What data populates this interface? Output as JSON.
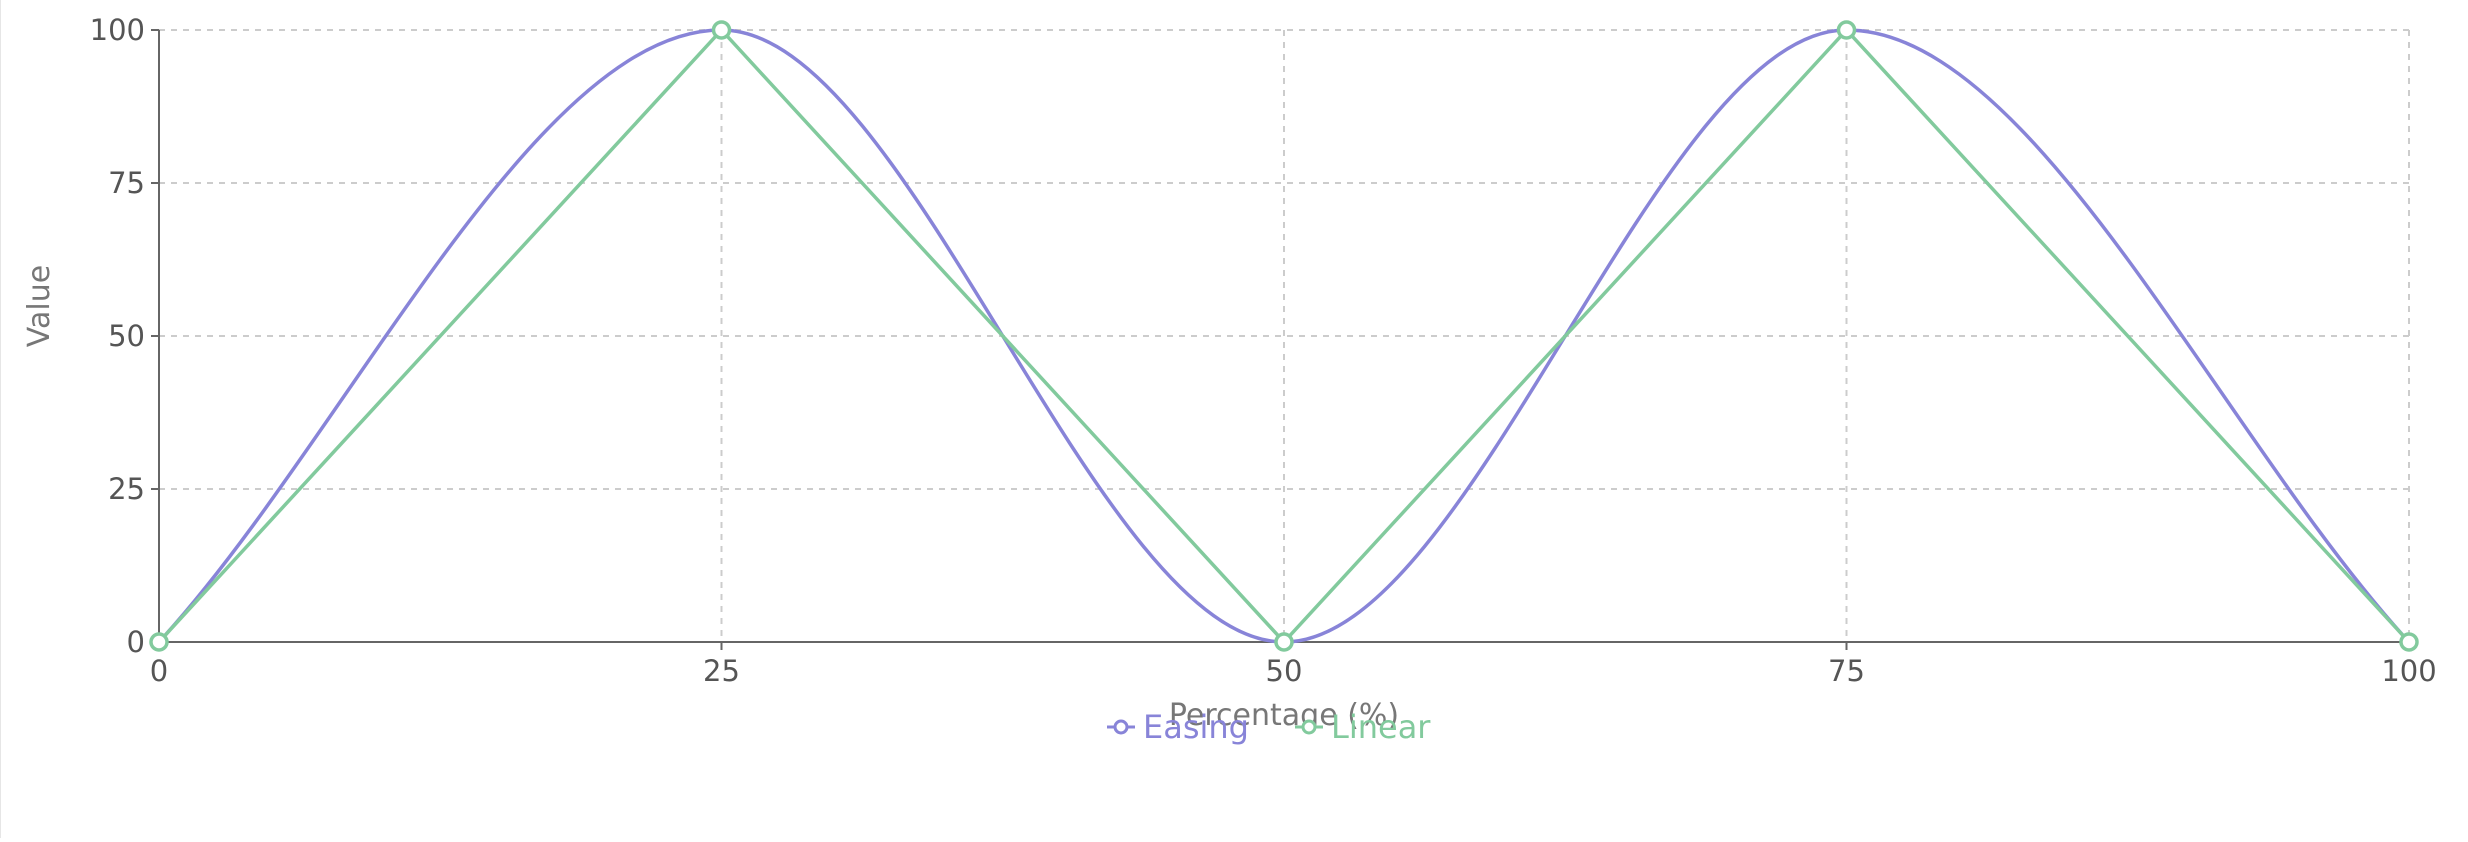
{
  "chart_data": {
    "type": "line",
    "xlabel": "Percentage (%)",
    "ylabel": "Value",
    "xlim": [
      0,
      100
    ],
    "ylim": [
      0,
      100
    ],
    "x_ticks": [
      0,
      25,
      50,
      75,
      100
    ],
    "y_ticks": [
      0,
      25,
      50,
      75,
      100
    ],
    "grid": true,
    "legend_position": "bottom",
    "series": [
      {
        "name": "Easing",
        "color": "#8884d8",
        "curve": "smooth",
        "show_markers": false,
        "x": [
          0,
          25,
          50,
          75,
          100
        ],
        "values": [
          0,
          100,
          0,
          100,
          0
        ]
      },
      {
        "name": "Linear",
        "color": "#82ca9d",
        "curve": "linear",
        "show_markers": true,
        "x": [
          0,
          25,
          50,
          75,
          100
        ],
        "values": [
          0,
          100,
          0,
          100,
          0
        ]
      }
    ]
  }
}
